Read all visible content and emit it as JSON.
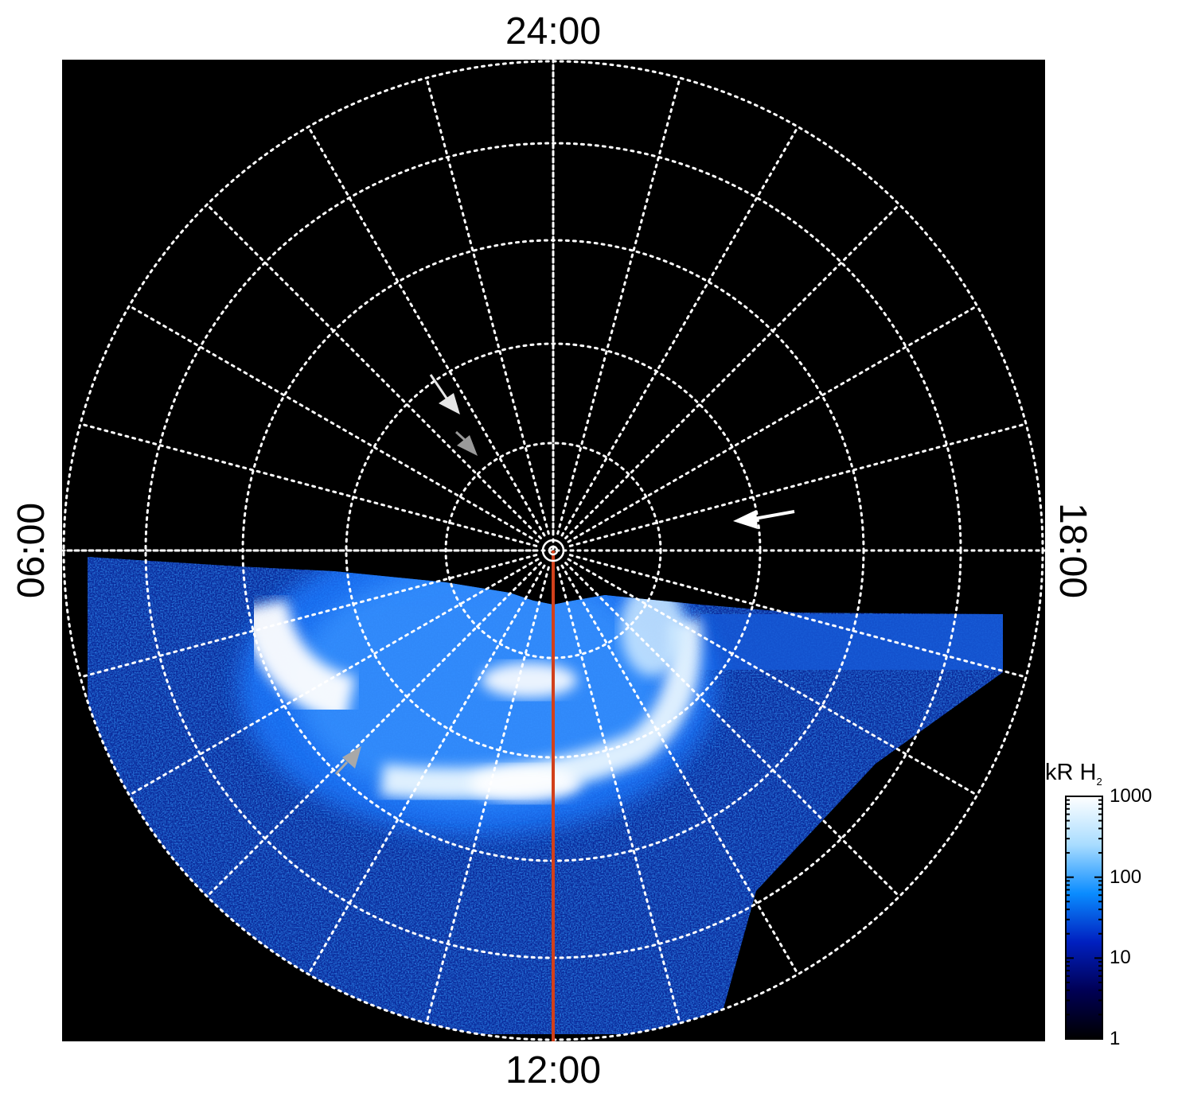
{
  "local_time_labels": {
    "top": "24:00",
    "bottom": "12:00",
    "left": "06:00",
    "right": "18:00"
  },
  "colorbar": {
    "unit_prefix": "kR H",
    "unit_subscript": "2",
    "scale": "log",
    "min": 1,
    "max": 1000,
    "tick_labels": [
      "1000",
      "100",
      "10",
      "1"
    ],
    "tick_values": [
      1000,
      100,
      10,
      1
    ],
    "colors": [
      "#000000",
      "#000055",
      "#0020c0",
      "#0a8cff",
      "#a8dcff",
      "#ffffff"
    ]
  },
  "image": {
    "background": "#000000",
    "grid_color": "#ffffff",
    "meridian_color": "#d2401a",
    "aurora_colors": {
      "faint": "#0a2a9a",
      "medium": "#1e7aff",
      "bright": "#9fd6ff",
      "peak": "#ffffff"
    }
  },
  "annotations": {
    "arrows": [
      {
        "name": "white-arrow-upper",
        "color": "#e6e6e6"
      },
      {
        "name": "gray-arrow-upper",
        "color": "#9a9a9a"
      },
      {
        "name": "white-arrow-right",
        "color": "#ffffff"
      },
      {
        "name": "gray-arrow-lower",
        "color": "#a8a8a8"
      }
    ]
  }
}
